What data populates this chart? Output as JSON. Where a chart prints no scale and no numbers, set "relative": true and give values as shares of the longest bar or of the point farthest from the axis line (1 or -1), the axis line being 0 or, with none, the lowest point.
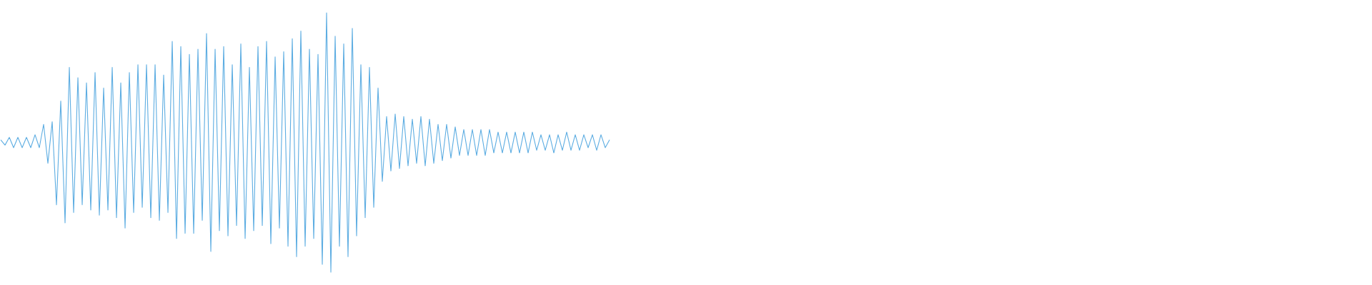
{
  "chart_data": {
    "type": "line",
    "relative": true,
    "color": "#5dade2",
    "categories": [
      null,
      null,
      null,
      null,
      null,
      null,
      null,
      null,
      null,
      null,
      null,
      null,
      null,
      null,
      null,
      null,
      null,
      null,
      null,
      null,
      null,
      null,
      null,
      null,
      null,
      null,
      null,
      null,
      null,
      null,
      null,
      null,
      null,
      null,
      null,
      null,
      null,
      null,
      null,
      null,
      null,
      null,
      null,
      null,
      null,
      null,
      null,
      null,
      null,
      null,
      null,
      null,
      null,
      null,
      null,
      null,
      null,
      null,
      null,
      null,
      null,
      null,
      null,
      null,
      null,
      null,
      null,
      null,
      null,
      null,
      null,
      null,
      null,
      null,
      null,
      null,
      null,
      null,
      null,
      null,
      null,
      null,
      null,
      null,
      null,
      null,
      null,
      null,
      null,
      null,
      null,
      null,
      null,
      null,
      null,
      null,
      null,
      null,
      null,
      null,
      null,
      null,
      null,
      null,
      null,
      null,
      null,
      null,
      null,
      null,
      null,
      null,
      null,
      null,
      null,
      null,
      null,
      null,
      null,
      null,
      null,
      null,
      null,
      null,
      null,
      null,
      null,
      null,
      null,
      null,
      null,
      null,
      null,
      null,
      null,
      null,
      null,
      null,
      null,
      null,
      null,
      null,
      null
    ],
    "values": [
      0.51,
      0.49,
      0.52,
      0.48,
      0.52,
      0.48,
      0.52,
      0.48,
      0.53,
      0.48,
      0.57,
      0.42,
      0.58,
      0.26,
      0.66,
      0.19,
      0.79,
      0.23,
      0.75,
      0.26,
      0.73,
      0.24,
      0.77,
      0.22,
      0.71,
      0.24,
      0.79,
      0.21,
      0.73,
      0.17,
      0.77,
      0.23,
      0.8,
      0.25,
      0.8,
      0.21,
      0.8,
      0.2,
      0.76,
      0.23,
      0.89,
      0.13,
      0.87,
      0.15,
      0.84,
      0.15,
      0.86,
      0.2,
      0.92,
      0.08,
      0.86,
      0.16,
      0.87,
      0.14,
      0.8,
      0.18,
      0.88,
      0.13,
      0.79,
      0.16,
      0.87,
      0.18,
      0.89,
      0.11,
      0.83,
      0.17,
      0.85,
      0.1,
      0.9,
      0.06,
      0.93,
      0.1,
      0.86,
      0.13,
      0.84,
      0.03,
      1,
      0,
      0.91,
      0.1,
      0.88,
      0.06,
      0.94,
      0.14,
      0.8,
      0.21,
      0.79,
      0.25,
      0.71,
      0.35,
      0.6,
      0.39,
      0.61,
      0.4,
      0.6,
      0.41,
      0.59,
      0.42,
      0.6,
      0.41,
      0.59,
      0.42,
      0.57,
      0.43,
      0.57,
      0.44,
      0.56,
      0.45,
      0.55,
      0.45,
      0.55,
      0.45,
      0.55,
      0.45,
      0.55,
      0.46,
      0.54,
      0.46,
      0.54,
      0.46,
      0.54,
      0.46,
      0.54,
      0.46,
      0.54,
      0.47,
      0.53,
      0.47,
      0.53,
      0.46,
      0.53,
      0.47,
      0.54,
      0.47,
      0.53,
      0.47,
      0.53,
      0.48,
      0.53,
      0.47,
      0.53,
      0.48,
      0.51
    ]
  }
}
